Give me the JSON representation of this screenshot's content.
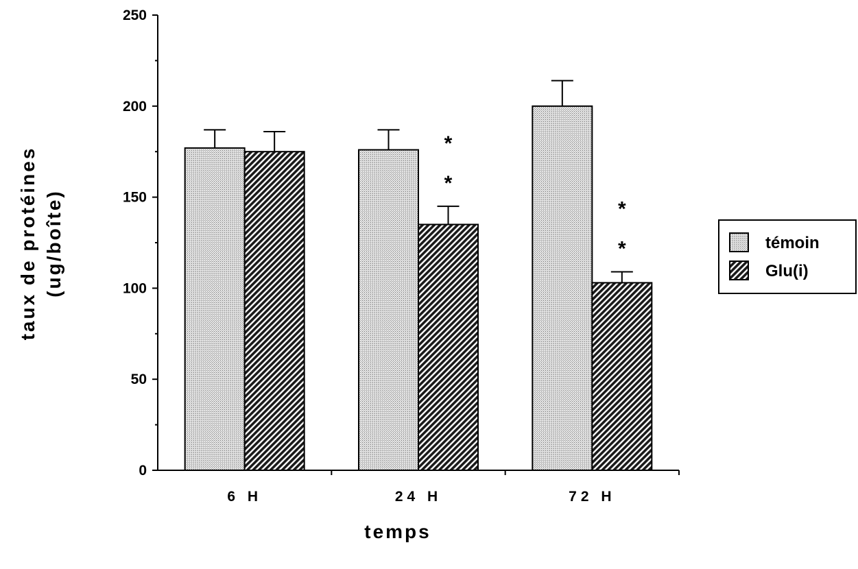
{
  "chart_data": {
    "type": "bar",
    "categories": [
      "6 H",
      "24 H",
      "72 H"
    ],
    "series": [
      {
        "name": "témoin",
        "values": [
          177,
          176,
          200
        ],
        "errors": [
          10,
          11,
          14
        ],
        "pattern": "dotted-light",
        "color": "#cfcfcf"
      },
      {
        "name": "Glu(i)",
        "values": [
          175,
          135,
          103
        ],
        "errors": [
          11,
          10,
          6
        ],
        "pattern": "hatched-dark",
        "color": "#2a2a2a"
      }
    ],
    "significance": [
      {
        "category": "24 H",
        "series": "Glu(i)",
        "marks": [
          "*",
          "*"
        ]
      },
      {
        "category": "72 H",
        "series": "Glu(i)",
        "marks": [
          "*",
          "*"
        ]
      }
    ],
    "xlabel": "temps",
    "ylabel_lines": [
      "taux  de  protéines",
      "(ug/boîte)"
    ],
    "ylim": [
      0,
      250
    ],
    "yticks": [
      0,
      50,
      100,
      150,
      200,
      250
    ],
    "grid": false,
    "legend_position": "right"
  }
}
